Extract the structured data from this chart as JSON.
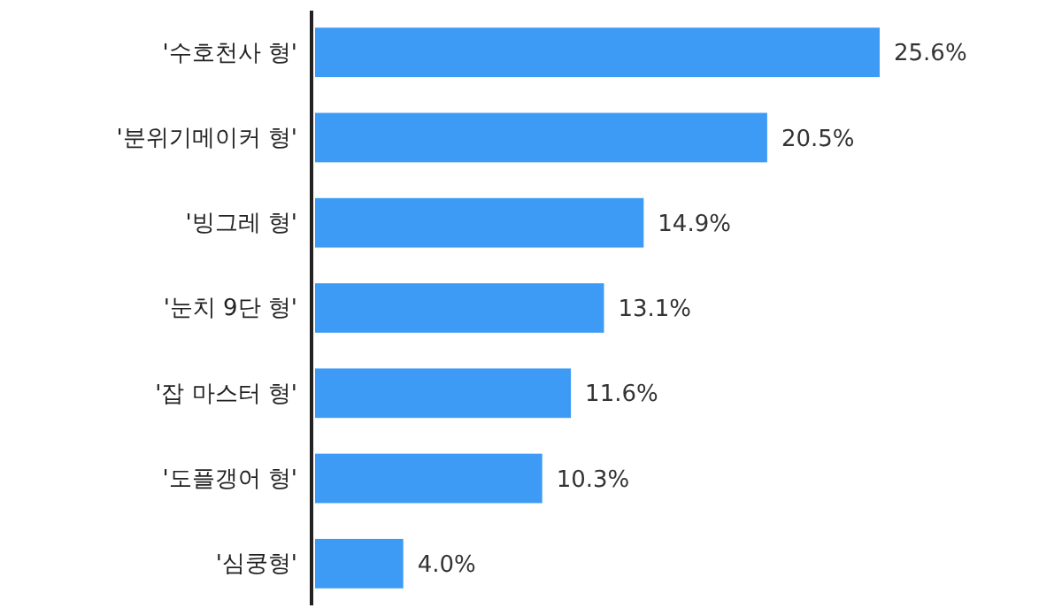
{
  "chart_data": {
    "type": "bar",
    "orientation": "horizontal",
    "categories": [
      "'수호천사 형'",
      "'분위기메이커 형'",
      "'빙그레 형'",
      "'눈치 9단 형'",
      "'잡 마스터 형'",
      "'도플갱어 형'",
      "'심쿵형'"
    ],
    "values": [
      25.6,
      20.5,
      14.9,
      13.1,
      11.6,
      10.3,
      4.0
    ],
    "value_labels": [
      "25.6%",
      "20.5%",
      "14.9%",
      "13.1%",
      "11.6%",
      "10.3%",
      "4.0%"
    ],
    "color": "#3d9bf5"
  }
}
